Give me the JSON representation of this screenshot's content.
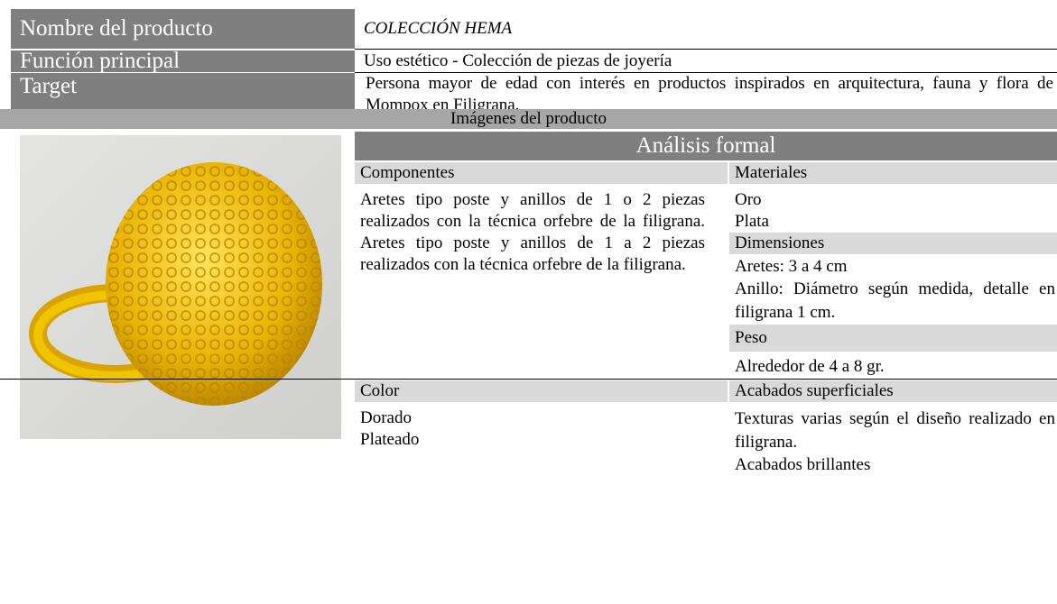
{
  "product_sheet": {
    "rows": [
      {
        "label": "Nombre del producto",
        "value": "COLECCIÓN HEMA"
      },
      {
        "label": "Función principal",
        "value": "Uso estético - Colección de piezas de joyería"
      },
      {
        "label": "Target",
        "value": "Persona mayor de edad con interés en productos inspirados en arquitectura, fauna y flora de Mompox en Filigrana."
      }
    ],
    "images_header": "Imágenes del producto",
    "analysis_title": "Análisis formal",
    "components": {
      "title": "Componentes",
      "text": "Aretes tipo poste y anillos de 1 o 2 piezas realizados con la técnica orfebre de la filigrana. Aretes tipo poste y anillos de 1 a 2 piezas realizados con la técnica orfebre de la filigrana."
    },
    "materials": {
      "title": "Materiales",
      "items": [
        "Oro",
        "Plata"
      ]
    },
    "dimensions": {
      "title": "Dimensiones",
      "items": [
        "Aretes: 3 a 4 cm",
        "Anillo: Diámetro según medida, detalle en filigrana 1 cm."
      ]
    },
    "weight": {
      "title": "Peso",
      "text": "Alrededor de 4 a 8 gr."
    },
    "color": {
      "title": "Color",
      "items": [
        "Dorado",
        "Plateado"
      ]
    },
    "finishes": {
      "title": "Acabados superficiales",
      "items": [
        "Texturas varias según el diseño realizado en filigrana.",
        "Acabados brillantes"
      ]
    }
  }
}
